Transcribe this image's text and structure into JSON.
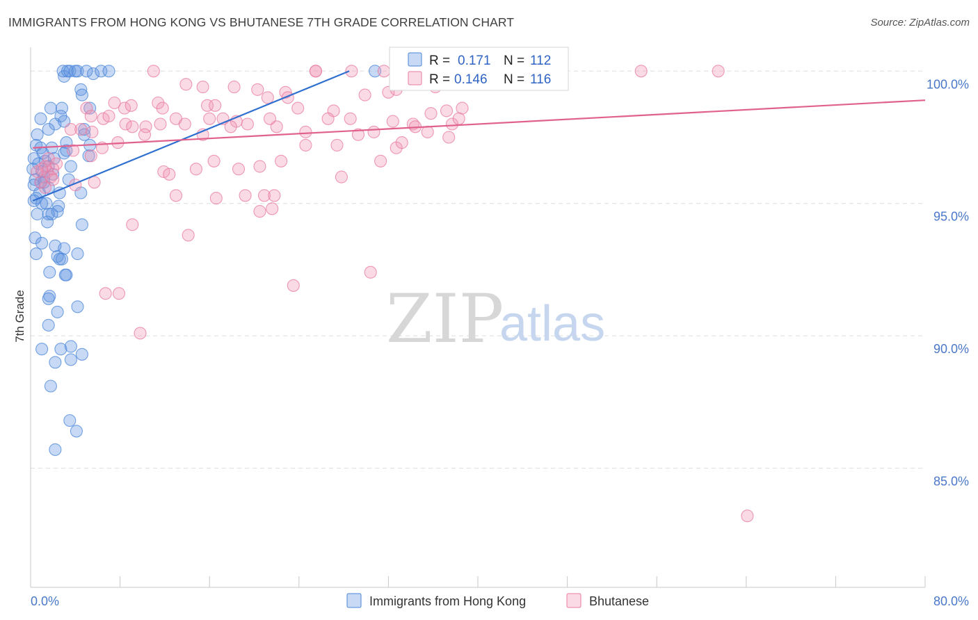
{
  "header": {
    "title": "IMMIGRANTS FROM HONG KONG VS BHUTANESE 7TH GRADE CORRELATION CHART",
    "source": "Source: ZipAtlas.com"
  },
  "watermark": {
    "zip": "ZIP",
    "atlas": "atlas"
  },
  "colors": {
    "blue": "#4a86d8",
    "blue_fill": "rgba(94,146,224,0.35)",
    "pink": "#e8799f",
    "pink_fill": "rgba(240,150,180,0.35)",
    "blue_line": "#2f6fd0",
    "pink_line": "#e0608e",
    "grid": "#dddddd",
    "tick_text": "#4a78c9"
  },
  "chart_data": {
    "type": "scatter",
    "title": "IMMIGRANTS FROM HONG KONG VS BHUTANESE 7TH GRADE CORRELATION CHART",
    "xlabel": "",
    "ylabel": "7th Grade",
    "xlim": [
      0,
      80
    ],
    "ylim": [
      80.5,
      100.9
    ],
    "x_tick_labels": [
      {
        "value": 0,
        "label": "0.0%"
      },
      {
        "value": 80,
        "label": "80.0%"
      }
    ],
    "y_tick_labels": [
      {
        "value": 100,
        "label": "100.0%"
      },
      {
        "value": 95,
        "label": "95.0%"
      },
      {
        "value": 90,
        "label": "90.0%"
      },
      {
        "value": 85,
        "label": "85.0%"
      }
    ],
    "x_minor_ticks": [
      8,
      16,
      24,
      32,
      40,
      48,
      56,
      64,
      72
    ],
    "legend": {
      "position": "bottom-center",
      "entries": [
        "Immigrants from Hong Kong",
        "Bhutanese"
      ]
    },
    "stats": [
      {
        "series": "Immigrants from Hong Kong",
        "r_label": "R =",
        "r": "0.171",
        "n_label": "N =",
        "n": "112"
      },
      {
        "series": "Bhutanese",
        "r_label": "R =",
        "r": "0.146",
        "n_label": "N =",
        "n": "116"
      }
    ],
    "series": [
      {
        "name": "Immigrants from Hong Kong",
        "color": "blue",
        "trend": {
          "x0": 0.2,
          "y0": 95.1,
          "x1": 28.5,
          "y1": 100.0
        },
        "points": [
          [
            2.9,
            100.0
          ],
          [
            3.0,
            99.8
          ],
          [
            3.3,
            100.0
          ],
          [
            3.5,
            100.0
          ],
          [
            4.0,
            100.0
          ],
          [
            4.2,
            100.0
          ],
          [
            5.0,
            100.0
          ],
          [
            5.6,
            99.9
          ],
          [
            6.3,
            100.0
          ],
          [
            7.0,
            100.0
          ],
          [
            30.8,
            100.0
          ],
          [
            4.5,
            99.3
          ],
          [
            4.6,
            99.1
          ],
          [
            5.3,
            98.6
          ],
          [
            1.8,
            98.6
          ],
          [
            2.8,
            98.6
          ],
          [
            2.2,
            98.0
          ],
          [
            2.7,
            98.3
          ],
          [
            0.9,
            98.2
          ],
          [
            3.0,
            98.1
          ],
          [
            4.8,
            97.8
          ],
          [
            0.6,
            97.6
          ],
          [
            1.6,
            97.8
          ],
          [
            4.8,
            97.6
          ],
          [
            3.2,
            97.3
          ],
          [
            5.3,
            97.2
          ],
          [
            0.5,
            97.2
          ],
          [
            0.9,
            97.1
          ],
          [
            1.9,
            97.1
          ],
          [
            1.1,
            96.9
          ],
          [
            3.0,
            96.9
          ],
          [
            3.2,
            97.0
          ],
          [
            5.2,
            96.8
          ],
          [
            0.3,
            96.7
          ],
          [
            1.3,
            96.6
          ],
          [
            2.1,
            96.7
          ],
          [
            0.7,
            96.5
          ],
          [
            1.6,
            96.4
          ],
          [
            3.6,
            96.4
          ],
          [
            0.2,
            96.3
          ],
          [
            1.0,
            96.2
          ],
          [
            2.0,
            96.1
          ],
          [
            1.2,
            96.0
          ],
          [
            0.4,
            95.9
          ],
          [
            0.9,
            95.8
          ],
          [
            1.2,
            95.8
          ],
          [
            3.4,
            95.9
          ],
          [
            0.3,
            95.7
          ],
          [
            1.6,
            95.6
          ],
          [
            0.8,
            95.4
          ],
          [
            2.6,
            95.4
          ],
          [
            4.5,
            95.4
          ],
          [
            0.5,
            95.2
          ],
          [
            0.3,
            95.1
          ],
          [
            1.0,
            95.0
          ],
          [
            1.4,
            95.0
          ],
          [
            2.5,
            94.9
          ],
          [
            2.4,
            94.7
          ],
          [
            0.6,
            94.6
          ],
          [
            1.6,
            94.6
          ],
          [
            1.9,
            94.6
          ],
          [
            1.5,
            94.3
          ],
          [
            4.6,
            94.2
          ],
          [
            0.4,
            93.7
          ],
          [
            1.0,
            93.5
          ],
          [
            2.2,
            93.4
          ],
          [
            3.0,
            93.3
          ],
          [
            0.5,
            93.1
          ],
          [
            2.4,
            93.0
          ],
          [
            4.2,
            93.1
          ],
          [
            2.6,
            92.9
          ],
          [
            2.8,
            92.9
          ],
          [
            1.7,
            92.4
          ],
          [
            3.1,
            92.3
          ],
          [
            3.2,
            92.3
          ],
          [
            1.7,
            91.5
          ],
          [
            1.6,
            91.4
          ],
          [
            4.2,
            91.1
          ],
          [
            2.4,
            90.9
          ],
          [
            1.6,
            90.4
          ],
          [
            1.0,
            89.5
          ],
          [
            2.7,
            89.5
          ],
          [
            3.6,
            89.6
          ],
          [
            4.6,
            89.3
          ],
          [
            2.2,
            89.0
          ],
          [
            3.6,
            89.1
          ],
          [
            1.8,
            88.1
          ],
          [
            3.5,
            86.8
          ],
          [
            4.1,
            86.4
          ],
          [
            2.2,
            85.7
          ]
        ]
      },
      {
        "name": "Bhutanese",
        "color": "pink",
        "trend": {
          "x0": 0.2,
          "y0": 97.1,
          "x1": 80.0,
          "y1": 98.9
        },
        "points": [
          [
            11.0,
            100.0
          ],
          [
            25.5,
            100.0
          ],
          [
            25.5,
            100.0
          ],
          [
            28.7,
            100.0
          ],
          [
            31.6,
            100.0
          ],
          [
            33.1,
            99.8
          ],
          [
            35.1,
            99.7
          ],
          [
            37.5,
            100.0
          ],
          [
            44.5,
            100.0
          ],
          [
            54.6,
            100.0
          ],
          [
            61.5,
            100.0
          ],
          [
            13.9,
            99.5
          ],
          [
            15.4,
            99.4
          ],
          [
            18.2,
            99.4
          ],
          [
            20.3,
            99.3
          ],
          [
            21.2,
            99.0
          ],
          [
            22.8,
            99.2
          ],
          [
            23.0,
            99.0
          ],
          [
            29.9,
            99.1
          ],
          [
            32.0,
            99.2
          ],
          [
            32.7,
            99.3
          ],
          [
            36.2,
            99.4
          ],
          [
            7.5,
            98.8
          ],
          [
            8.4,
            98.6
          ],
          [
            11.4,
            98.8
          ],
          [
            9.0,
            98.7
          ],
          [
            11.8,
            98.6
          ],
          [
            15.8,
            98.7
          ],
          [
            16.5,
            98.7
          ],
          [
            23.9,
            98.6
          ],
          [
            27.1,
            98.5
          ],
          [
            35.8,
            98.4
          ],
          [
            37.2,
            98.5
          ],
          [
            38.6,
            98.6
          ],
          [
            5.0,
            98.6
          ],
          [
            5.4,
            98.3
          ],
          [
            6.5,
            98.2
          ],
          [
            7.0,
            98.3
          ],
          [
            13.0,
            98.2
          ],
          [
            16.0,
            98.2
          ],
          [
            17.2,
            98.2
          ],
          [
            18.4,
            98.1
          ],
          [
            19.4,
            98.0
          ],
          [
            21.4,
            98.2
          ],
          [
            26.6,
            98.2
          ],
          [
            28.6,
            98.2
          ],
          [
            32.4,
            98.1
          ],
          [
            34.2,
            98.0
          ],
          [
            37.7,
            98.0
          ],
          [
            38.3,
            98.2
          ],
          [
            8.5,
            98.0
          ],
          [
            9.1,
            97.9
          ],
          [
            10.3,
            97.9
          ],
          [
            11.6,
            98.0
          ],
          [
            13.8,
            98.0
          ],
          [
            17.9,
            97.9
          ],
          [
            22.0,
            97.9
          ],
          [
            24.6,
            97.7
          ],
          [
            30.7,
            97.7
          ],
          [
            34.4,
            97.9
          ],
          [
            35.5,
            97.7
          ],
          [
            3.6,
            97.8
          ],
          [
            4.5,
            97.8
          ],
          [
            5.5,
            97.7
          ],
          [
            10.2,
            97.6
          ],
          [
            15.4,
            97.6
          ],
          [
            29.3,
            97.6
          ],
          [
            37.4,
            97.5
          ],
          [
            27.4,
            97.2
          ],
          [
            32.7,
            97.1
          ],
          [
            33.2,
            97.3
          ],
          [
            24.6,
            97.2
          ],
          [
            6.4,
            97.1
          ],
          [
            7.8,
            97.3
          ],
          [
            3.8,
            97.0
          ],
          [
            5.4,
            96.8
          ],
          [
            1.6,
            96.7
          ],
          [
            2.3,
            96.5
          ],
          [
            2.0,
            96.3
          ],
          [
            1.5,
            96.2
          ],
          [
            1.8,
            96.0
          ],
          [
            2.0,
            95.9
          ],
          [
            1.3,
            96.4
          ],
          [
            1.0,
            96.3
          ],
          [
            0.6,
            96.2
          ],
          [
            16.4,
            96.6
          ],
          [
            14.8,
            96.3
          ],
          [
            11.9,
            96.2
          ],
          [
            12.4,
            96.1
          ],
          [
            18.6,
            96.3
          ],
          [
            20.5,
            96.4
          ],
          [
            22.4,
            96.6
          ],
          [
            27.8,
            96.0
          ],
          [
            31.3,
            96.6
          ],
          [
            5.7,
            95.8
          ],
          [
            4.0,
            95.7
          ],
          [
            13.0,
            95.3
          ],
          [
            16.6,
            95.2
          ],
          [
            19.2,
            95.3
          ],
          [
            20.9,
            95.3
          ],
          [
            21.8,
            95.3
          ],
          [
            20.5,
            94.7
          ],
          [
            21.6,
            94.8
          ],
          [
            9.1,
            94.2
          ],
          [
            14.1,
            93.8
          ],
          [
            30.4,
            92.4
          ],
          [
            23.5,
            91.9
          ],
          [
            6.7,
            91.6
          ],
          [
            7.9,
            91.6
          ],
          [
            9.8,
            90.1
          ],
          [
            64.1,
            83.2
          ],
          [
            1.3,
            95.6
          ],
          [
            0.9,
            95.8
          ]
        ]
      }
    ]
  }
}
